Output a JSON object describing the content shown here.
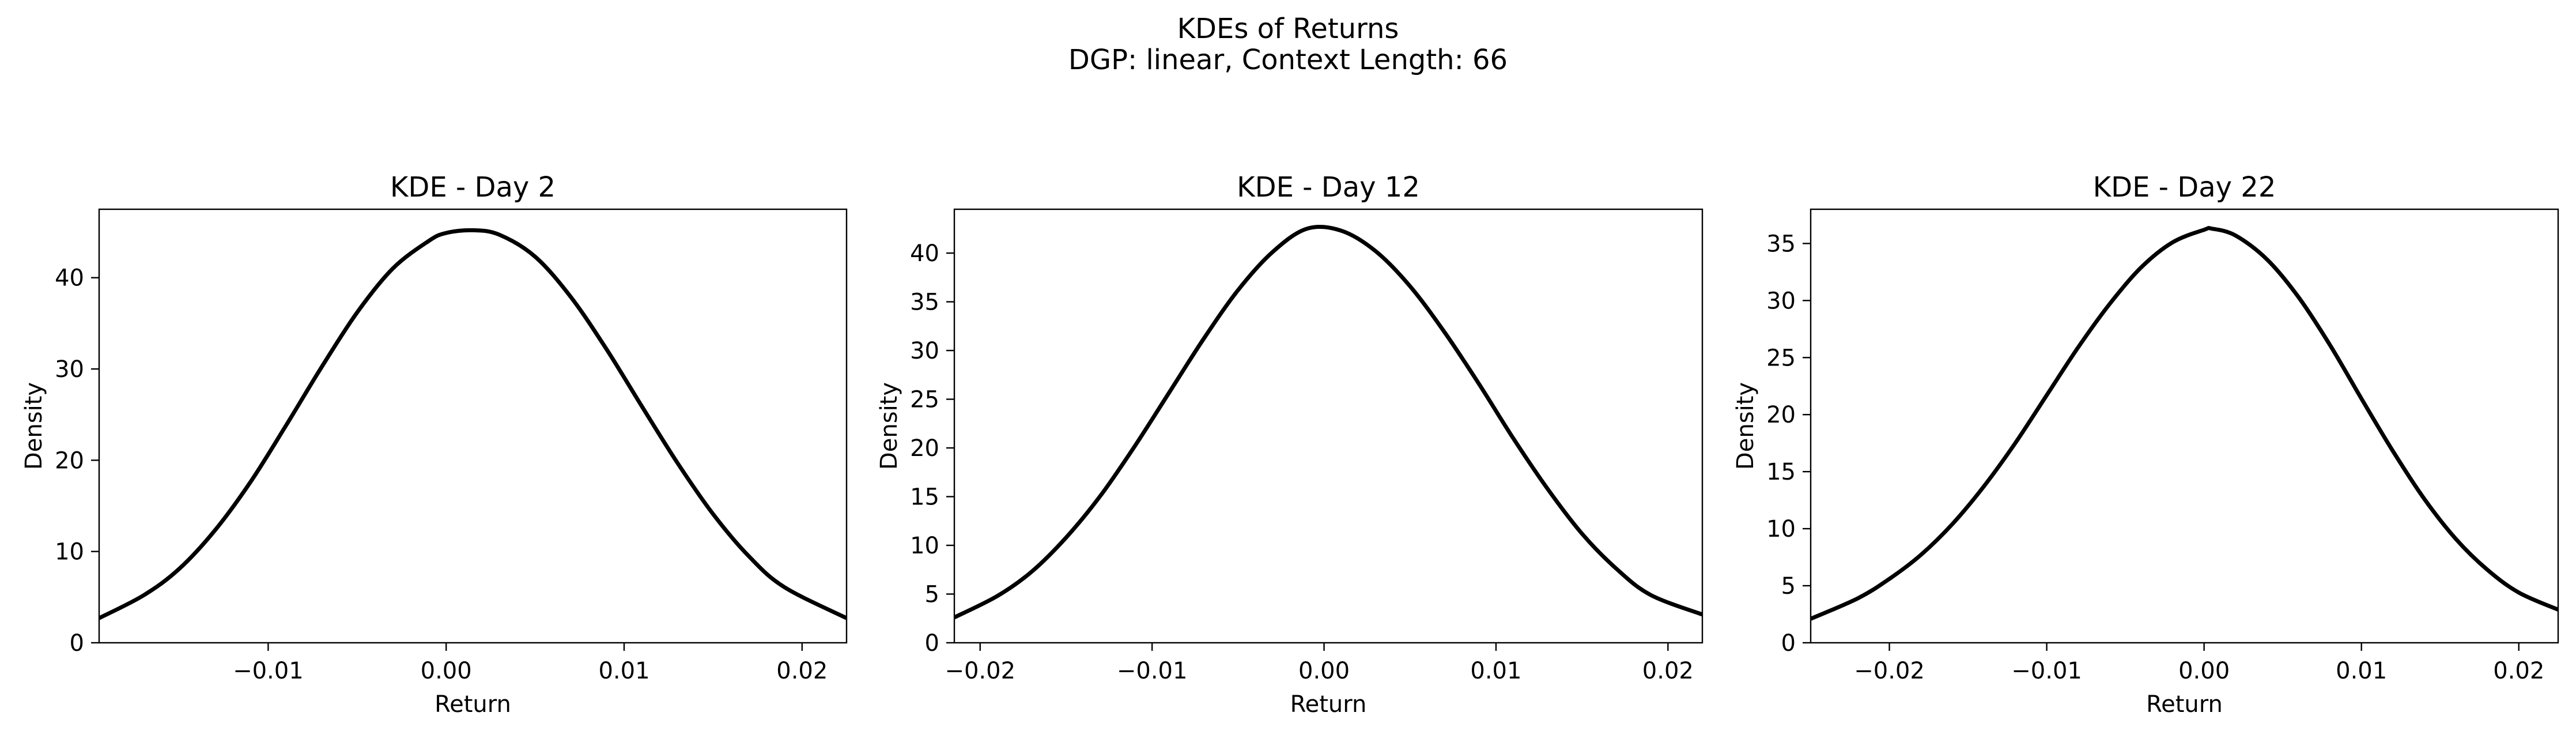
{
  "figure": {
    "title": "KDEs of Returns",
    "subtitle": "DGP: linear, Context Length: 66"
  },
  "chart_data": [
    {
      "type": "line",
      "title": "KDE - Day 2",
      "xlabel": "Return",
      "ylabel": "Density",
      "xlim": [
        -0.0195,
        0.0225
      ],
      "ylim": [
        0,
        47.5
      ],
      "xticks": [
        -0.01,
        0.0,
        0.01,
        0.02
      ],
      "xtick_labels": [
        "−0.01",
        "0.00",
        "0.01",
        "0.02"
      ],
      "yticks": [
        0,
        10,
        20,
        30,
        40
      ],
      "ytick_labels": [
        "0",
        "10",
        "20",
        "30",
        "40"
      ],
      "grid": false,
      "series": [
        {
          "color": "#000000",
          "x": [
            -0.0195,
            -0.017,
            -0.015,
            -0.013,
            -0.011,
            -0.009,
            -0.007,
            -0.005,
            -0.003,
            -0.001,
            0.0,
            0.0015,
            0.003,
            0.005,
            0.007,
            0.009,
            0.011,
            0.013,
            0.015,
            0.017,
            0.019,
            0.0225
          ],
          "y": [
            2.7,
            5.2,
            8.1,
            12.3,
            17.6,
            23.8,
            30.2,
            36.2,
            41.0,
            44.0,
            44.9,
            45.2,
            44.7,
            42.3,
            37.9,
            32.2,
            25.9,
            19.7,
            14.1,
            9.5,
            6.1,
            2.7
          ]
        }
      ]
    },
    {
      "type": "line",
      "title": "KDE - Day 12",
      "xlabel": "Return",
      "ylabel": "Density",
      "xlim": [
        -0.0215,
        0.022
      ],
      "ylim": [
        0,
        44.5
      ],
      "xticks": [
        -0.02,
        -0.01,
        0.0,
        0.01,
        0.02
      ],
      "xtick_labels": [
        "−0.02",
        "−0.01",
        "0.00",
        "0.01",
        "0.02"
      ],
      "yticks": [
        0,
        5,
        10,
        15,
        20,
        25,
        30,
        35,
        40
      ],
      "ytick_labels": [
        "0",
        "5",
        "10",
        "15",
        "20",
        "25",
        "30",
        "35",
        "40"
      ],
      "grid": false,
      "series": [
        {
          "color": "#000000",
          "x": [
            -0.0215,
            -0.019,
            -0.017,
            -0.015,
            -0.013,
            -0.011,
            -0.009,
            -0.007,
            -0.005,
            -0.003,
            -0.001,
            0.001,
            0.003,
            0.005,
            0.007,
            0.009,
            0.011,
            0.013,
            0.015,
            0.017,
            0.019,
            0.022
          ],
          "y": [
            2.6,
            4.8,
            7.3,
            10.8,
            15.1,
            20.2,
            25.7,
            31.2,
            36.2,
            40.1,
            42.5,
            42.3,
            40.2,
            36.6,
            31.9,
            26.6,
            21.0,
            15.8,
            11.2,
            7.6,
            4.9,
            2.9
          ]
        }
      ]
    },
    {
      "type": "line",
      "title": "KDE - Day 22",
      "xlabel": "Return",
      "ylabel": "Density",
      "xlim": [
        -0.025,
        0.0225
      ],
      "ylim": [
        0,
        38
      ],
      "xticks": [
        -0.02,
        -0.01,
        0.0,
        0.01,
        0.02
      ],
      "xtick_labels": [
        "−0.02",
        "−0.01",
        "0.00",
        "0.01",
        "0.02"
      ],
      "yticks": [
        0,
        5,
        10,
        15,
        20,
        25,
        30,
        35
      ],
      "ytick_labels": [
        "0",
        "5",
        "10",
        "15",
        "20",
        "25",
        "30",
        "35"
      ],
      "grid": false,
      "series": [
        {
          "color": "#000000",
          "x": [
            -0.025,
            -0.022,
            -0.02,
            -0.018,
            -0.016,
            -0.014,
            -0.012,
            -0.01,
            -0.008,
            -0.006,
            -0.004,
            -0.002,
            0.0,
            0.0005,
            0.002,
            0.004,
            0.006,
            0.008,
            0.01,
            0.012,
            0.014,
            0.016,
            0.018,
            0.02,
            0.0225
          ],
          "y": [
            2.1,
            3.9,
            5.6,
            7.7,
            10.4,
            13.7,
            17.5,
            21.7,
            25.9,
            29.7,
            32.9,
            35.1,
            36.2,
            36.3,
            35.7,
            33.6,
            30.3,
            26.1,
            21.4,
            16.8,
            12.6,
            9.1,
            6.4,
            4.4,
            2.9
          ]
        }
      ]
    }
  ]
}
